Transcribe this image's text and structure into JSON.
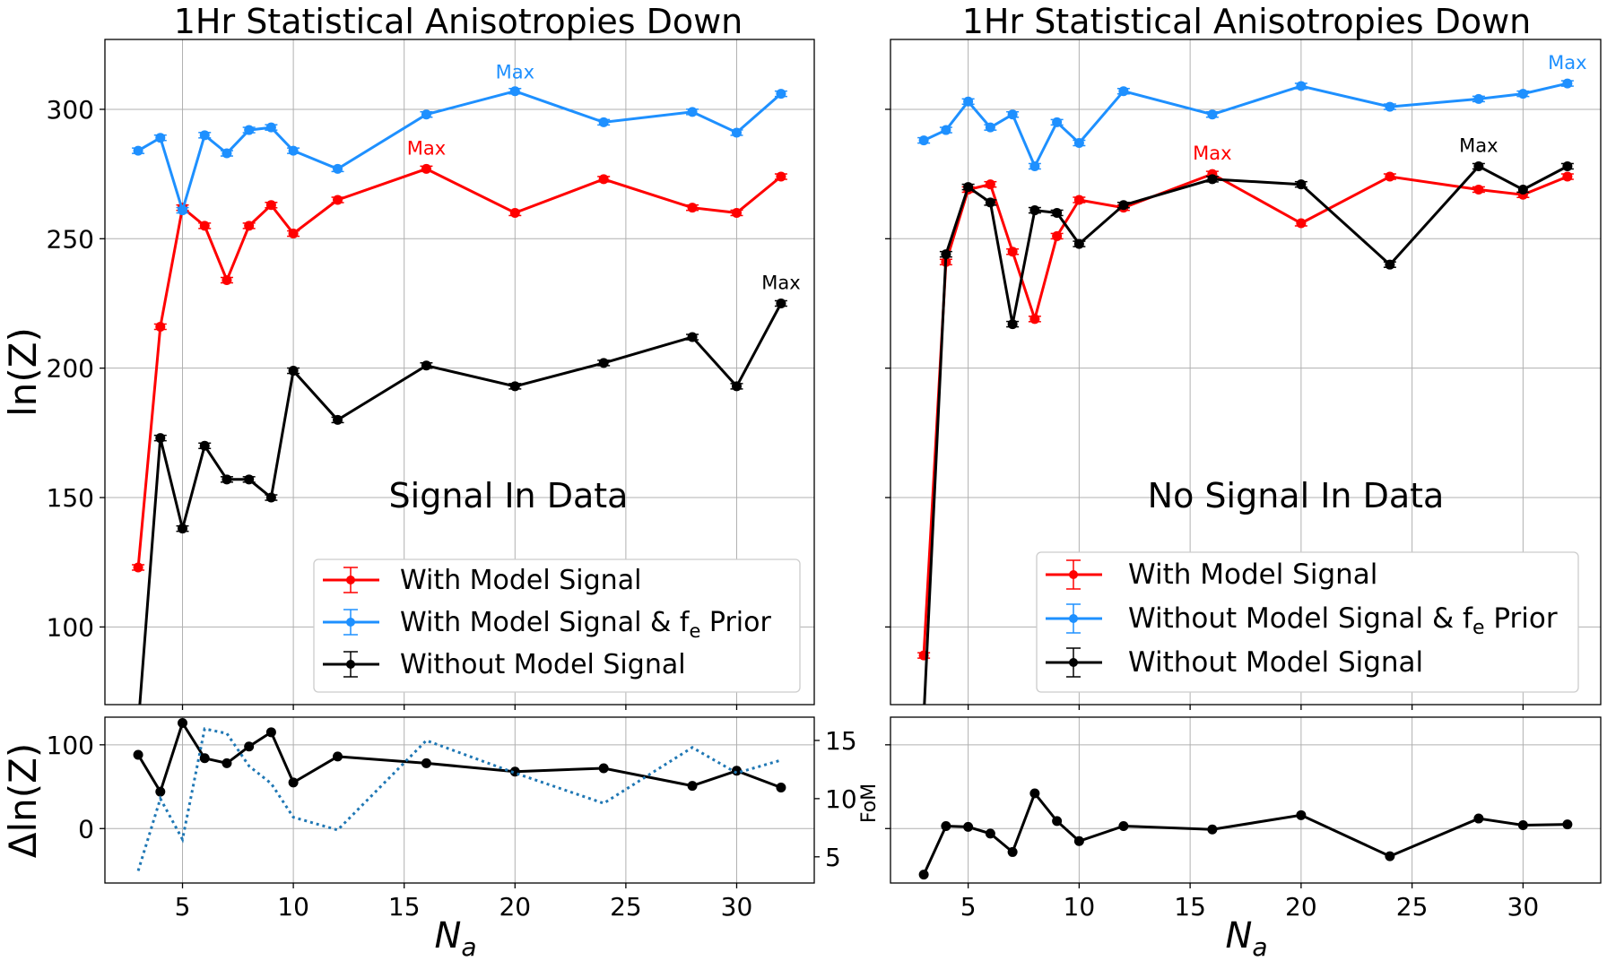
{
  "colors": {
    "with_model_signal": "#ff0000",
    "prior": "#1e90ff",
    "without_model_signal": "#000000",
    "fom": "#1f77b4"
  },
  "left_title": "1Hr Statistical Anisotropies Down",
  "right_title": "1Hr Statistical Anisotropies Down",
  "left_annotation": "Signal In Data",
  "right_annotation": "No Signal In Data",
  "max_label": "Max",
  "xlabel": "N",
  "xlabel_sub": "a",
  "ylabel_top": "ln(Z)",
  "ylabel_bottom": "Δln(Z)",
  "ylabel_fom": "FoM",
  "legend_left": {
    "item1": "With Model Signal",
    "item2_main": "With Model Signal & f",
    "item2_sub": "e",
    "item2_end": " Prior",
    "item3": "Without Model Signal"
  },
  "legend_right": {
    "item1": "With Model Signal",
    "item2_main": "Without Model Signal & f",
    "item2_sub": "e",
    "item2_end": " Prior",
    "item3": "Without Model Signal"
  },
  "chart_data": [
    {
      "type": "line",
      "panel": "left-top",
      "title": "1Hr Statistical Anisotropies Down",
      "annotation": "Signal In Data",
      "xlabel": "N_a",
      "ylabel": "ln(Z)",
      "xlim": [
        1.5,
        33.5
      ],
      "ylim": [
        70,
        327
      ],
      "x_ticks": [
        5,
        10,
        15,
        20,
        25,
        30
      ],
      "y_ticks": [
        100,
        150,
        200,
        250,
        300
      ],
      "grid": true,
      "legend": "lower-right",
      "x": [
        3,
        4,
        5,
        6,
        7,
        8,
        9,
        10,
        12,
        16,
        20,
        24,
        28,
        30,
        32
      ],
      "series": [
        {
          "name": "With Model Signal",
          "color": "#ff0000",
          "values": [
            123,
            216,
            262,
            255,
            234,
            255,
            263,
            252,
            265,
            277,
            260,
            273,
            262,
            260,
            274
          ],
          "max_index": 9
        },
        {
          "name": "With Model Signal & f_e Prior",
          "color": "#1e90ff",
          "values": [
            284,
            289,
            261,
            290,
            283,
            292,
            293,
            284,
            277,
            298,
            307,
            295,
            299,
            291,
            306
          ],
          "max_index": 10
        },
        {
          "name": "Without Model Signal",
          "color": "#000000",
          "values": [
            62,
            173,
            138,
            170,
            157,
            157,
            150,
            199,
            180,
            201,
            193,
            202,
            212,
            193,
            225
          ],
          "max_index": 14
        }
      ]
    },
    {
      "type": "line",
      "panel": "right-top",
      "title": "1Hr Statistical Anisotropies Down",
      "annotation": "No Signal In Data",
      "xlabel": "N_a",
      "xlim": [
        1.5,
        33.5
      ],
      "ylim": [
        70,
        327
      ],
      "x_ticks": [
        5,
        10,
        15,
        20,
        25,
        30
      ],
      "grid": true,
      "legend": "lower-right",
      "x": [
        3,
        4,
        5,
        6,
        7,
        8,
        9,
        10,
        12,
        16,
        20,
        24,
        28,
        30,
        32
      ],
      "series": [
        {
          "name": "With Model Signal",
          "color": "#ff0000",
          "values": [
            89,
            241,
            269,
            271,
            245,
            219,
            251,
            265,
            262,
            275,
            256,
            274,
            269,
            267,
            274
          ],
          "max_index": 9
        },
        {
          "name": "Without Model Signal & f_e Prior",
          "color": "#1e90ff",
          "values": [
            288,
            292,
            303,
            293,
            298,
            278,
            295,
            287,
            307,
            298,
            309,
            301,
            304,
            306,
            310
          ],
          "max_index": 14
        },
        {
          "name": "Without Model Signal",
          "color": "#000000",
          "values": [
            65,
            244,
            270,
            264,
            217,
            261,
            260,
            248,
            263,
            273,
            271,
            240,
            278,
            269,
            278
          ],
          "max_index": 12
        }
      ]
    },
    {
      "type": "line",
      "panel": "left-bottom",
      "xlabel": "N_a",
      "ylabel": "Δln(Z)",
      "ylabel_right": "FoM",
      "xlim": [
        1.5,
        33.5
      ],
      "ylim": [
        -65,
        133
      ],
      "ylim_right": [
        2.75,
        17
      ],
      "y_ticks": [
        0,
        100
      ],
      "y_ticks_right": [
        5,
        10,
        15
      ],
      "grid": true,
      "x": [
        3,
        4,
        5,
        6,
        7,
        8,
        9,
        10,
        12,
        16,
        20,
        24,
        28,
        30,
        32
      ],
      "series": [
        {
          "name": "",
          "color": "#000000",
          "values": [
            88,
            44,
            126,
            84,
            78,
            98,
            115,
            55,
            86,
            78,
            68,
            72,
            51,
            69,
            49
          ]
        },
        {
          "name": "",
          "color": "#1f77b4",
          "axis": "right",
          "style": "dotted",
          "values": [
            3.8,
            10,
            6.5,
            16,
            15.6,
            12.8,
            11.3,
            8.4,
            7.3,
            15,
            12.2,
            9.6,
            14.4,
            12.2,
            13.3
          ]
        }
      ]
    },
    {
      "type": "line",
      "panel": "right-bottom",
      "xlabel": "N_a",
      "xlim": [
        1.5,
        33.5
      ],
      "ylim": [
        -65,
        133
      ],
      "grid": true,
      "x": [
        3,
        4,
        5,
        6,
        7,
        8,
        9,
        10,
        12,
        16,
        20,
        24,
        28,
        30,
        32
      ],
      "series": [
        {
          "name": "",
          "color": "#000000",
          "values": [
            -55,
            3,
            2,
            -6,
            -28,
            42,
            9,
            -15,
            3,
            -1,
            16,
            -33,
            12,
            4,
            5
          ]
        }
      ]
    }
  ]
}
